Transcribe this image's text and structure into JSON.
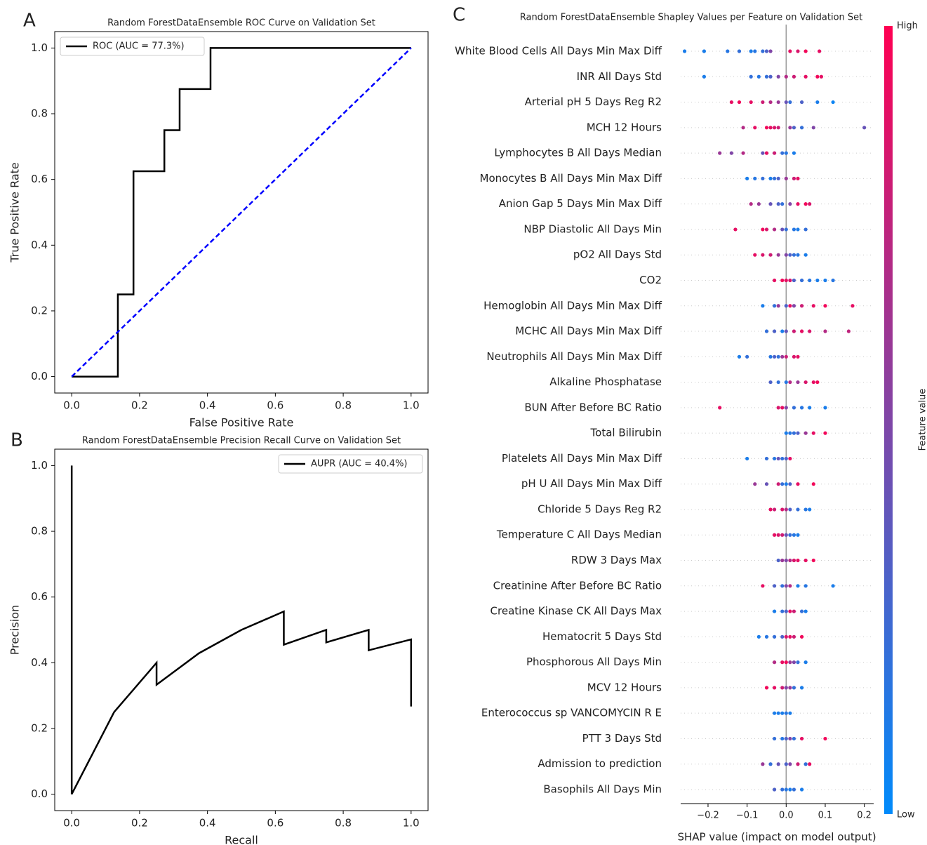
{
  "panel_labels": [
    "A",
    "B",
    "C"
  ],
  "chart_data": [
    {
      "type": "line",
      "title": "Random ForestDataEnsemble ROC Curve on Validation Set",
      "x_label": "False Positive Rate",
      "y_label": "True Positive Rate",
      "xlim": [
        -0.05,
        1.05
      ],
      "ylim": [
        -0.05,
        1.05
      ],
      "xticks": [
        {
          "value": 0,
          "label": "0.0"
        },
        0.2,
        0.4,
        0.6,
        0.8,
        {
          "value": 1,
          "label": "1.0"
        }
      ],
      "yticks": [
        {
          "value": 0,
          "label": "0.0"
        },
        0.2,
        0.4,
        0.6,
        0.8,
        {
          "value": 1,
          "label": "1.0"
        }
      ],
      "legend": "upper left",
      "series": [
        {
          "name": "ROC (AUC = 77.3%)",
          "color": "#000000",
          "x": [
            0,
            0.136,
            0.136,
            0.182,
            0.182,
            0.273,
            0.273,
            0.318,
            0.318,
            0.409,
            0.409,
            1
          ],
          "values": [
            0,
            0,
            0.25,
            0.25,
            0.625,
            0.625,
            0.75,
            0.75,
            0.875,
            0.875,
            1,
            1
          ]
        },
        {
          "color": "#0000ff",
          "linestyle": "dashed",
          "x": [
            0,
            1
          ],
          "values": [
            0,
            1
          ]
        }
      ]
    },
    {
      "type": "line",
      "title": "Random ForestDataEnsemble Precision Recall Curve on Validation Set",
      "x_label": "Recall",
      "y_label": "Precision",
      "xlim": [
        -0.05,
        1.05
      ],
      "ylim": [
        -0.05,
        1.05
      ],
      "xticks": [
        {
          "value": 0,
          "label": "0.0"
        },
        0.2,
        0.4,
        0.6,
        0.8,
        {
          "value": 1,
          "label": "1.0"
        }
      ],
      "yticks": [
        {
          "value": 0,
          "label": "0.0"
        },
        0.2,
        0.4,
        0.6,
        0.8,
        {
          "value": 1,
          "label": "1.0"
        }
      ],
      "legend": "upper right",
      "series": [
        {
          "name": "AUPR (AUC = 40.4%)",
          "color": "#000000",
          "x": [
            0,
            0,
            0.125,
            0.25,
            0.25,
            0.375,
            0.5,
            0.625,
            0.625,
            0.75,
            0.75,
            0.875,
            0.875,
            1,
            1
          ],
          "values": [
            1,
            0,
            0.25,
            0.4,
            0.333,
            0.429,
            0.5,
            0.556,
            0.455,
            0.5,
            0.462,
            0.5,
            0.438,
            0.471,
            0.267
          ]
        }
      ]
    },
    {
      "type": "beeswarm",
      "title": "Random ForestDataEnsemble Shapley Values per Feature on Validation Set",
      "x_label": "SHAP value (impact on model output)",
      "xlim": [
        -0.27,
        0.224
      ],
      "xticks": [
        {
          "value": -0.2,
          "label": "−0.2"
        },
        {
          "value": -0.1,
          "label": "−0.1"
        },
        {
          "value": 0,
          "label": "0.0"
        },
        0.1,
        0.2
      ],
      "colorbar": {
        "label": "Feature value",
        "high": "High",
        "low": "Low",
        "color_low": "#008bfb",
        "color_high": "#ff0052"
      },
      "features": [
        {
          "name": "White Blood Cells All Days Min Max Diff",
          "shap": [
            -0.26,
            -0.21,
            -0.15,
            -0.12,
            -0.09,
            -0.08,
            -0.06,
            -0.05,
            -0.04,
            0.01,
            0.03,
            0.05,
            0.085
          ],
          "feature_value": [
            0.1,
            0.1,
            0.15,
            0.2,
            0.1,
            0.15,
            0.2,
            0.3,
            0.5,
            0.9,
            0.85,
            0.95,
            0.9
          ]
        },
        {
          "name": "INR All Days Std",
          "shap": [
            -0.21,
            -0.09,
            -0.07,
            -0.05,
            -0.04,
            -0.02,
            0,
            0.02,
            0.05,
            0.08,
            0.09
          ],
          "feature_value": [
            0.1,
            0.2,
            0.15,
            0.2,
            0.3,
            0.5,
            0.7,
            0.8,
            0.9,
            0.95,
            0.9
          ]
        },
        {
          "name": "Arterial pH 5 Days Reg R2",
          "shap": [
            -0.14,
            -0.12,
            -0.09,
            -0.06,
            -0.04,
            -0.02,
            0,
            0.01,
            0.04,
            0.08,
            0.12
          ],
          "feature_value": [
            0.9,
            0.95,
            0.9,
            0.8,
            0.7,
            0.6,
            0.4,
            0.2,
            0.3,
            0.1,
            0.05
          ]
        },
        {
          "name": "MCH 12 Hours",
          "shap": [
            -0.11,
            -0.08,
            -0.05,
            -0.04,
            -0.03,
            -0.02,
            0.01,
            0.02,
            0.04,
            0.07,
            0.2
          ],
          "feature_value": [
            0.7,
            0.9,
            0.95,
            0.9,
            0.85,
            0.8,
            0.6,
            0.3,
            0.2,
            0.5,
            0.4
          ]
        },
        {
          "name": "Lymphocytes B All Days Median",
          "shap": [
            -0.17,
            -0.14,
            -0.11,
            -0.06,
            -0.05,
            -0.03,
            -0.01,
            0,
            0.02
          ],
          "feature_value": [
            0.6,
            0.5,
            0.7,
            0.4,
            0.9,
            0.8,
            0.2,
            0.15,
            0.1
          ]
        },
        {
          "name": "Monocytes B All Days Min Max Diff",
          "shap": [
            -0.1,
            -0.08,
            -0.06,
            -0.04,
            -0.03,
            -0.02,
            0,
            0.02,
            0.03
          ],
          "feature_value": [
            0.1,
            0.15,
            0.2,
            0.1,
            0.2,
            0.3,
            0.6,
            0.8,
            0.9
          ]
        },
        {
          "name": "Anion Gap 5 Days Min Max Diff",
          "shap": [
            -0.09,
            -0.07,
            -0.04,
            -0.02,
            -0.01,
            0.01,
            0.03,
            0.05,
            0.06
          ],
          "feature_value": [
            0.7,
            0.6,
            0.4,
            0.3,
            0.2,
            0.5,
            0.9,
            0.95,
            0.85
          ]
        },
        {
          "name": "NBP Diastolic All Days Min",
          "shap": [
            -0.13,
            -0.06,
            -0.05,
            -0.03,
            -0.01,
            0,
            0.02,
            0.03,
            0.05
          ],
          "feature_value": [
            0.9,
            0.95,
            0.85,
            0.7,
            0.4,
            0.2,
            0.15,
            0.1,
            0.2
          ]
        },
        {
          "name": "pO2 All Days Std",
          "shap": [
            -0.08,
            -0.06,
            -0.04,
            -0.02,
            0,
            0.01,
            0.02,
            0.03,
            0.05
          ],
          "feature_value": [
            0.9,
            0.85,
            0.8,
            0.6,
            0.5,
            0.3,
            0.2,
            0.15,
            0.1
          ]
        },
        {
          "name": "CO2",
          "shap": [
            -0.03,
            -0.01,
            0,
            0.01,
            0.02,
            0.04,
            0.06,
            0.08,
            0.1,
            0.12
          ],
          "feature_value": [
            0.9,
            0.95,
            0.9,
            0.85,
            0.3,
            0.2,
            0.15,
            0.1,
            0.1,
            0.15
          ]
        },
        {
          "name": "Hemoglobin All Days Min Max Diff",
          "shap": [
            -0.06,
            -0.03,
            -0.02,
            0,
            0.01,
            0.02,
            0.04,
            0.07,
            0.1,
            0.17
          ],
          "feature_value": [
            0.1,
            0.2,
            0.6,
            0.3,
            0.9,
            0.5,
            0.8,
            0.9,
            0.95,
            0.9
          ]
        },
        {
          "name": "MCHC All Days Min Max Diff",
          "shap": [
            -0.05,
            -0.03,
            -0.01,
            0,
            0.02,
            0.04,
            0.06,
            0.1,
            0.16
          ],
          "feature_value": [
            0.2,
            0.3,
            0.1,
            0.4,
            0.8,
            0.9,
            0.85,
            0.7,
            0.75
          ]
        },
        {
          "name": "Neutrophils All Days Min Max Diff",
          "shap": [
            -0.12,
            -0.1,
            -0.04,
            -0.03,
            -0.02,
            -0.01,
            0,
            0.02,
            0.03
          ],
          "feature_value": [
            0.1,
            0.2,
            0.15,
            0.3,
            0.2,
            0.6,
            0.8,
            0.85,
            0.9
          ]
        },
        {
          "name": "Alkaline Phosphatase",
          "shap": [
            -0.04,
            -0.02,
            0,
            0.01,
            0.03,
            0.05,
            0.07,
            0.08
          ],
          "feature_value": [
            0.3,
            0.2,
            0.15,
            0.7,
            0.6,
            0.85,
            0.9,
            0.95
          ]
        },
        {
          "name": "BUN After Before BC Ratio",
          "shap": [
            -0.17,
            -0.02,
            -0.01,
            0,
            0.02,
            0.04,
            0.06,
            0.1
          ],
          "feature_value": [
            0.9,
            0.85,
            0.9,
            0.5,
            0.2,
            0.15,
            0.1,
            0.1
          ]
        },
        {
          "name": "Total Bilirubin",
          "shap": [
            0,
            0.01,
            0.02,
            0.03,
            0.05,
            0.07,
            0.1
          ],
          "feature_value": [
            0.1,
            0.15,
            0.2,
            0.3,
            0.6,
            0.9,
            0.95
          ]
        },
        {
          "name": "Platelets All Days Min Max Diff",
          "shap": [
            -0.1,
            -0.05,
            -0.03,
            -0.02,
            -0.01,
            0,
            0.01
          ],
          "feature_value": [
            0.1,
            0.2,
            0.15,
            0.4,
            0.2,
            0.3,
            0.9
          ]
        },
        {
          "name": "pH U All Days Min Max Diff",
          "shap": [
            -0.08,
            -0.05,
            -0.02,
            -0.01,
            0,
            0.01,
            0.03,
            0.07
          ],
          "feature_value": [
            0.6,
            0.4,
            0.8,
            0.2,
            0.1,
            0.3,
            0.9,
            0.95
          ]
        },
        {
          "name": "Chloride 5 Days Reg R2",
          "shap": [
            -0.04,
            -0.03,
            -0.01,
            0,
            0.01,
            0.03,
            0.05,
            0.06
          ],
          "feature_value": [
            0.9,
            0.8,
            0.85,
            0.7,
            0.3,
            0.2,
            0.15,
            0.1
          ]
        },
        {
          "name": "Temperature C All Days Median",
          "shap": [
            -0.03,
            -0.02,
            -0.01,
            0,
            0.01,
            0.02,
            0.03
          ],
          "feature_value": [
            0.9,
            0.85,
            0.8,
            0.4,
            0.2,
            0.15,
            0.1
          ]
        },
        {
          "name": "RDW 3 Days Max",
          "shap": [
            -0.02,
            -0.01,
            0,
            0.01,
            0.02,
            0.03,
            0.05,
            0.07
          ],
          "feature_value": [
            0.3,
            0.6,
            0.5,
            0.7,
            0.85,
            0.9,
            0.9,
            0.95
          ]
        },
        {
          "name": "Creatinine After Before BC Ratio",
          "shap": [
            -0.06,
            -0.03,
            -0.01,
            0,
            0.01,
            0.03,
            0.05,
            0.12
          ],
          "feature_value": [
            0.9,
            0.3,
            0.2,
            0.5,
            0.7,
            0.1,
            0.15,
            0.1
          ]
        },
        {
          "name": "Creatine Kinase CK All Days Max",
          "shap": [
            -0.03,
            -0.01,
            0,
            0.01,
            0.02,
            0.04,
            0.05
          ],
          "feature_value": [
            0.1,
            0.2,
            0.3,
            0.9,
            0.8,
            0.2,
            0.1
          ]
        },
        {
          "name": "Hematocrit 5 Days Std",
          "shap": [
            -0.07,
            -0.05,
            -0.03,
            -0.01,
            0,
            0.01,
            0.02,
            0.04
          ],
          "feature_value": [
            0.1,
            0.15,
            0.2,
            0.3,
            0.85,
            0.9,
            0.8,
            0.95
          ]
        },
        {
          "name": "Phosphorous All Days Min",
          "shap": [
            -0.03,
            -0.01,
            0,
            0.01,
            0.02,
            0.03,
            0.05
          ],
          "feature_value": [
            0.7,
            0.9,
            0.95,
            0.6,
            0.5,
            0.2,
            0.1
          ]
        },
        {
          "name": "MCV 12 Hours",
          "shap": [
            -0.05,
            -0.03,
            -0.01,
            0,
            0.01,
            0.02,
            0.04
          ],
          "feature_value": [
            0.95,
            0.9,
            0.8,
            0.5,
            0.6,
            0.2,
            0.1
          ]
        },
        {
          "name": "Enterococcus sp  VANCOMYCIN  R E",
          "shap": [
            -0.03,
            -0.02,
            -0.01,
            0,
            0.01
          ],
          "feature_value": [
            0.1,
            0.1,
            0.1,
            0.15,
            0.1
          ]
        },
        {
          "name": "PTT 3 Days Std",
          "shap": [
            -0.03,
            -0.01,
            0,
            0.01,
            0.02,
            0.04,
            0.1
          ],
          "feature_value": [
            0.2,
            0.15,
            0.3,
            0.5,
            0.2,
            0.9,
            0.95
          ]
        },
        {
          "name": "Admission to prediction",
          "shap": [
            -0.06,
            -0.04,
            -0.02,
            0,
            0.01,
            0.03,
            0.05,
            0.06
          ],
          "feature_value": [
            0.6,
            0.2,
            0.4,
            0.3,
            0.5,
            0.8,
            0.2,
            0.9
          ]
        },
        {
          "name": "Basophils All Days Min",
          "shap": [
            -0.03,
            -0.01,
            0,
            0.01,
            0.02,
            0.04
          ],
          "feature_value": [
            0.3,
            0.2,
            0.15,
            0.1,
            0.2,
            0.1
          ]
        }
      ]
    }
  ]
}
